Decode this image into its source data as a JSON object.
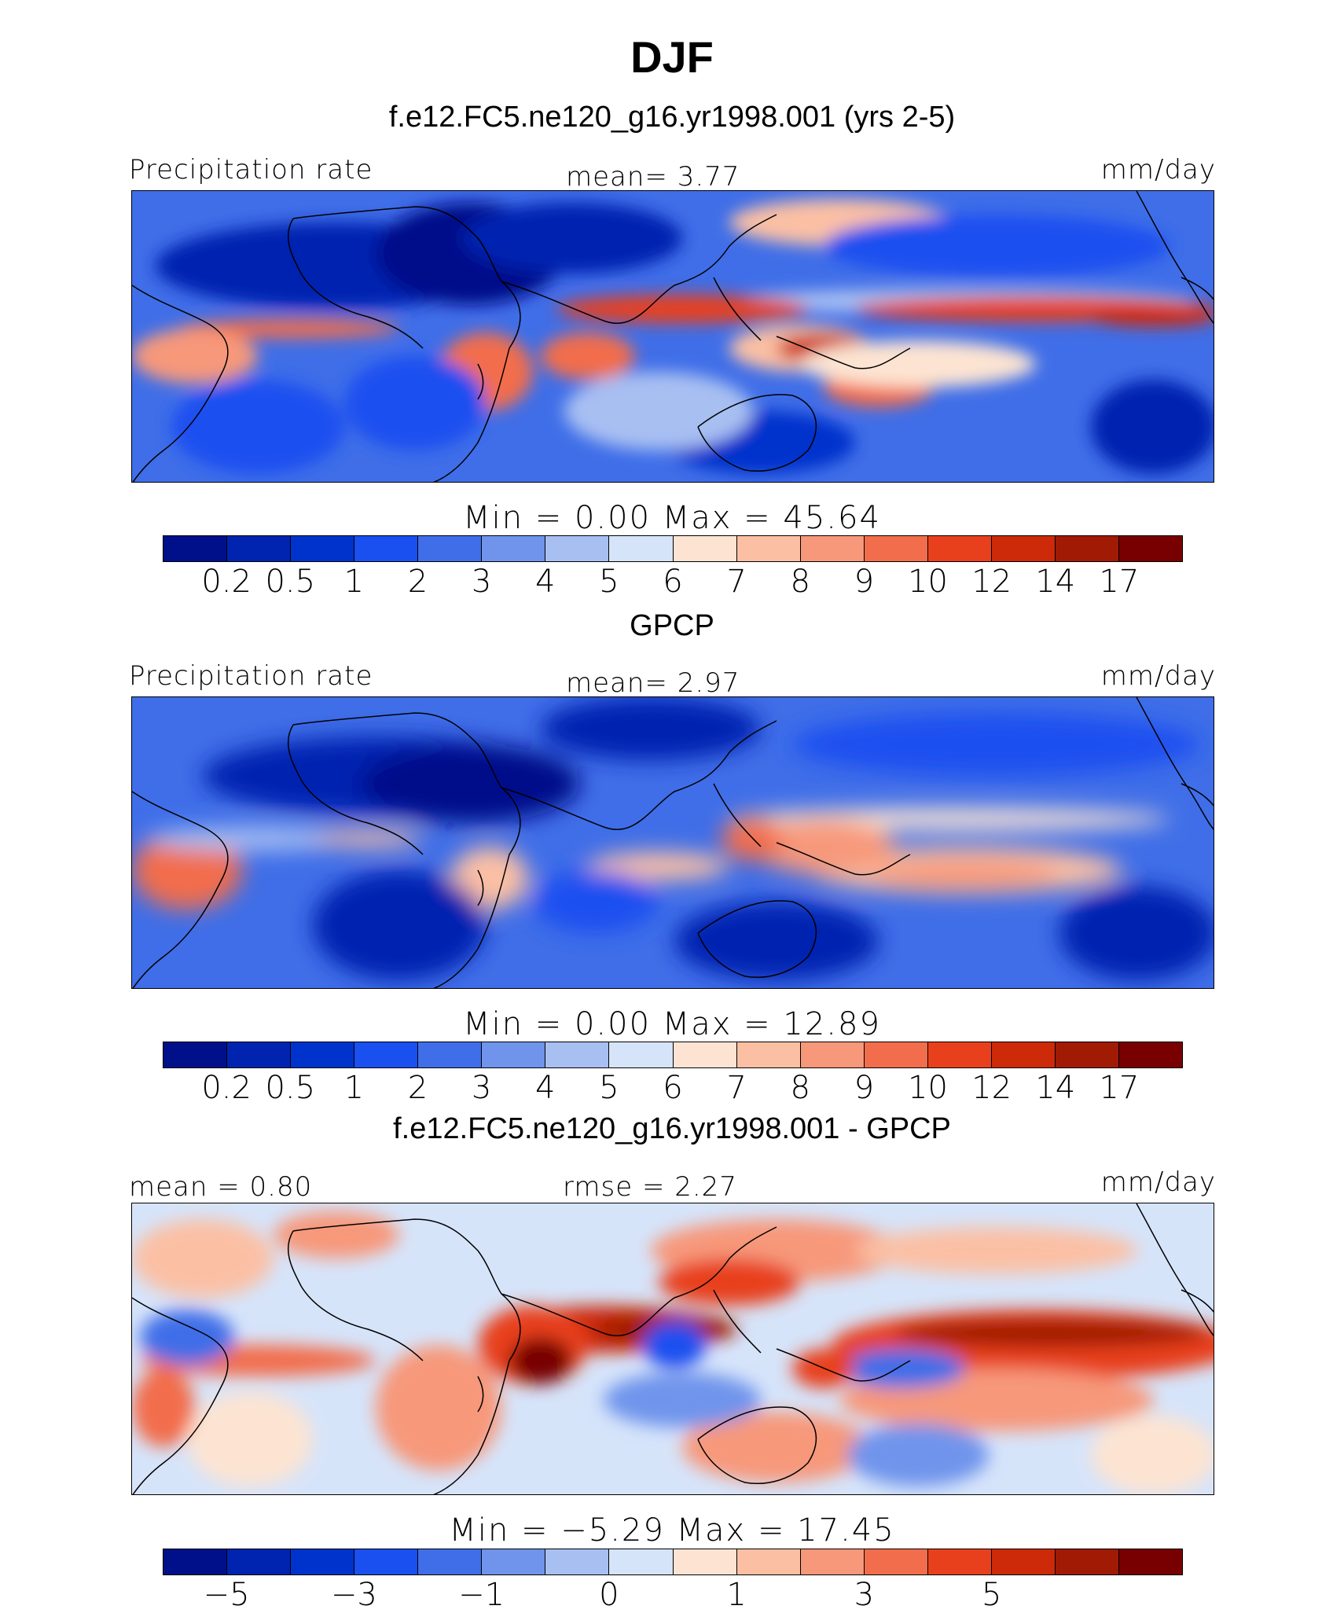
{
  "title": "DJF",
  "colors": {
    "precip": [
      "#00108a",
      "#0024b0",
      "#0033cc",
      "#1a4ff0",
      "#3f6ee8",
      "#7094ec",
      "#a8bff2",
      "#d6e4fa",
      "#fde4d2",
      "#fbc0a4",
      "#f7987a",
      "#f26d4c",
      "#e8401c",
      "#cc2a08",
      "#a11a04",
      "#780000"
    ],
    "diff": [
      "#00108a",
      "#0024b0",
      "#0033cc",
      "#1a4ff0",
      "#3f6ee8",
      "#7094ec",
      "#a8bff2",
      "#d6e4fa",
      "#fde4d2",
      "#fbc0a4",
      "#f7987a",
      "#f26d4c",
      "#e8401c",
      "#cc2a08",
      "#a11a04",
      "#780000"
    ]
  },
  "panels": [
    {
      "id": "model",
      "title": "f.e12.FC5.ne120_g16.yr1998.001 (yrs 2-5)",
      "left_label": "Precipitation rate",
      "center_label": "mean=    3.77",
      "right_label": "mm/day",
      "minmax": "Min  =     0.00  Max  =    45.64",
      "colorbar_ticks": [
        "0.2",
        "0.5",
        "1",
        "2",
        "3",
        "4",
        "5",
        "6",
        "7",
        "8",
        "9",
        "10",
        "12",
        "14",
        "17"
      ]
    },
    {
      "id": "obs",
      "title": "GPCP",
      "left_label": "Precipitation rate",
      "center_label": "mean=    2.97",
      "right_label": "mm/day",
      "minmax": "Min  =     0.00  Max  =    12.89",
      "colorbar_ticks": [
        "0.2",
        "0.5",
        "1",
        "2",
        "3",
        "4",
        "5",
        "6",
        "7",
        "8",
        "9",
        "10",
        "12",
        "14",
        "17"
      ]
    },
    {
      "id": "diff",
      "title": "f.e12.FC5.ne120_g16.yr1998.001 - GPCP",
      "left_label": "mean  =     0.80",
      "center_label": "rmse  =     2.27",
      "right_label": "mm/day",
      "minmax": "Min  =    −5.29  Max  =    17.45",
      "colorbar_ticks": [
        "−5",
        "−3",
        "−1",
        "0",
        "1",
        "3",
        "5"
      ]
    }
  ]
}
